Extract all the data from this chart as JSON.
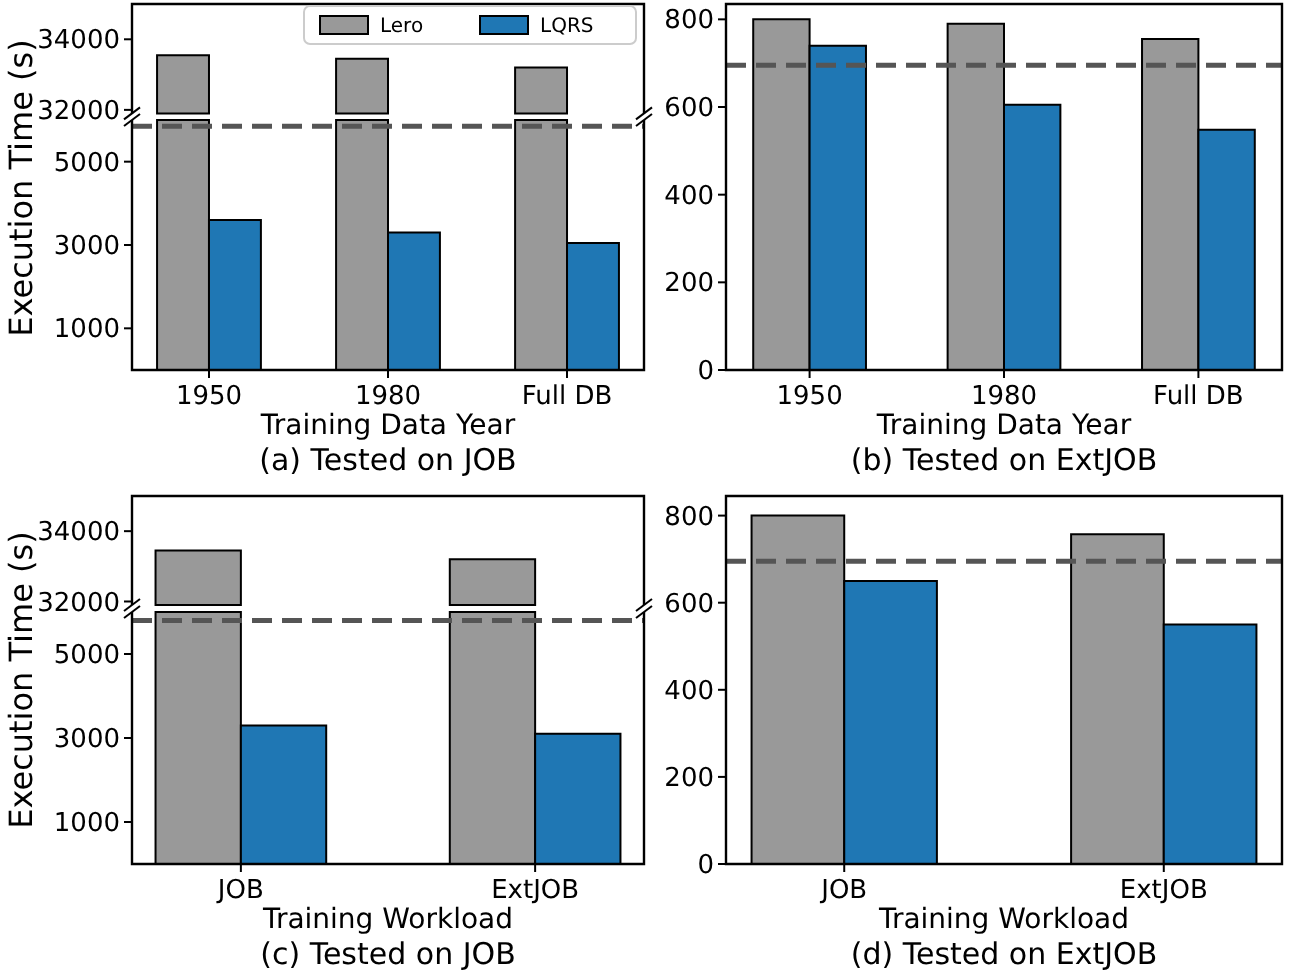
{
  "chart_data": [
    {
      "type": "bar",
      "categories": [
        null,
        null,
        null
      ],
      "series": [
        {
          "name": "Lero",
          "color": "#999999",
          "values": [
            33550,
            33450,
            33200
          ]
        },
        {
          "name": "LQRS",
          "color": "#1f77b4",
          "values": [
            null,
            null,
            null
          ]
        }
      ],
      "ylim": [
        31900,
        35000
      ],
      "yticks": [
        32000,
        34000
      ],
      "tick_labels": "y",
      "legend": "top right"
    },
    {
      "type": "bar",
      "title": "(a) Tested on JOB",
      "xlabel": "Training Data Year",
      "ylabel": "Execution Time (s)",
      "categories": [
        "1950",
        "1980",
        "Full DB"
      ],
      "series": [
        {
          "color": "#999999",
          "values": [
            null,
            null,
            null
          ]
        },
        {
          "color": "#1f77b4",
          "values": [
            3600,
            3300,
            3050
          ]
        }
      ],
      "ylim": [
        0,
        6000
      ],
      "yticks": [
        1000,
        3000,
        5000
      ],
      "ref_lines": [
        {
          "axis": "y",
          "value": 5850,
          "color": "#555555",
          "line_style": "dashed"
        }
      ]
    },
    {
      "type": "bar",
      "title": "(b) Tested on ExtJOB",
      "xlabel": "Training Data Year",
      "categories": [
        "1950",
        "1980",
        "Full DB"
      ],
      "series": [
        {
          "color": "#999999",
          "values": [
            800,
            790,
            755
          ]
        },
        {
          "color": "#1f77b4",
          "values": [
            740,
            605,
            548
          ]
        }
      ],
      "ylim": [
        0,
        835
      ],
      "yticks": [
        0,
        200,
        400,
        600,
        800
      ],
      "ref_lines": [
        {
          "axis": "y",
          "value": 695,
          "color": "#555555",
          "line_style": "dashed"
        }
      ]
    },
    {
      "type": "bar",
      "categories": [
        null,
        null
      ],
      "series": [
        {
          "color": "#999999",
          "values": [
            33450,
            33200
          ]
        },
        {
          "color": "#1f77b4",
          "values": [
            null,
            null
          ]
        }
      ],
      "ylim": [
        31900,
        35000
      ],
      "yticks": [
        32000,
        34000
      ],
      "tick_labels": "y"
    },
    {
      "type": "bar",
      "title": "(c) Tested on JOB",
      "xlabel": "Training Workload",
      "ylabel": "Execution Time (s)",
      "categories": [
        "JOB",
        "ExtJOB"
      ],
      "series": [
        {
          "color": "#999999",
          "values": [
            null,
            null
          ]
        },
        {
          "color": "#1f77b4",
          "values": [
            3300,
            3100
          ]
        }
      ],
      "ylim": [
        0,
        6000
      ],
      "yticks": [
        1000,
        3000,
        5000
      ],
      "ref_lines": [
        {
          "axis": "y",
          "value": 5800,
          "color": "#555555",
          "line_style": "dashed"
        }
      ]
    },
    {
      "type": "bar",
      "title": "(d) Tested on ExtJOB",
      "xlabel": "Training Workload",
      "categories": [
        "JOB",
        "ExtJOB"
      ],
      "series": [
        {
          "color": "#999999",
          "values": [
            800,
            757
          ]
        },
        {
          "color": "#1f77b4",
          "values": [
            650,
            550
          ]
        }
      ],
      "ylim": [
        0,
        845
      ],
      "yticks": [
        0,
        200,
        400,
        600,
        800
      ],
      "ref_lines": [
        {
          "axis": "y",
          "value": 695,
          "color": "#555555",
          "line_style": "dashed"
        }
      ]
    }
  ]
}
